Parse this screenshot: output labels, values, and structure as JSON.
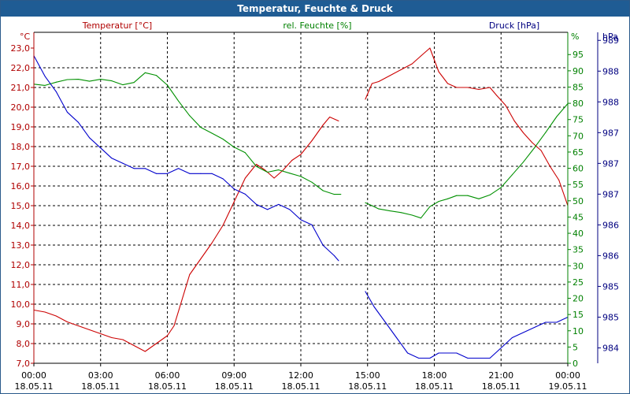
{
  "window": {
    "title": "Temperatur, Feuchte & Druck"
  },
  "chart_data": {
    "type": "line",
    "title": "Temperatur, Feuchte & Druck",
    "x_ticks": [
      {
        "time": "00:00",
        "date": "18.05.11"
      },
      {
        "time": "03:00",
        "date": "18.05.11"
      },
      {
        "time": "06:00",
        "date": "18.05.11"
      },
      {
        "time": "09:00",
        "date": "18.05.11"
      },
      {
        "time": "12:00",
        "date": "18.05.11"
      },
      {
        "time": "15:00",
        "date": "18.05.11"
      },
      {
        "time": "18:00",
        "date": "18.05.11"
      },
      {
        "time": "21:00",
        "date": "18.05.11"
      },
      {
        "time": "00:00",
        "date": "19.05.11"
      }
    ],
    "x_range_hours": [
      0,
      24
    ],
    "axes": {
      "temperature": {
        "label": "Temperatur [°C]",
        "unit": "°C",
        "color": "#b00000",
        "range": [
          7.0,
          23.0
        ],
        "ticks": [
          "7,0",
          "8,0",
          "9,0",
          "10,0",
          "11,0",
          "12,0",
          "13,0",
          "14,0",
          "15,0",
          "16,0",
          "17,0",
          "18,0",
          "19,0",
          "20,0",
          "21,0",
          "22,0",
          "23,0"
        ]
      },
      "humidity": {
        "label": "rel. Feuchte [%]",
        "unit": "%",
        "color": "#008000",
        "range": [
          0,
          97
        ],
        "ticks": [
          "0",
          "5",
          "10",
          "15",
          "20",
          "25",
          "30",
          "35",
          "40",
          "45",
          "50",
          "55",
          "60",
          "65",
          "70",
          "75",
          "80",
          "85",
          "90",
          "95"
        ]
      },
      "pressure": {
        "label": "Druck [hPa]",
        "unit": "hPa",
        "color": "#000080",
        "range": [
          983.7,
          989.85
        ],
        "ticks": [
          "984",
          "985",
          "985",
          "986",
          "986",
          "987",
          "987",
          "987",
          "988",
          "988",
          "989"
        ],
        "tick_values": [
          984,
          984.6,
          985.2,
          985.8,
          986.4,
          987.0,
          987.6,
          988.2,
          988.8,
          989.4,
          990.0
        ]
      }
    },
    "grid": true,
    "series": [
      {
        "name": "Temperatur [°C]",
        "axis": "temperature",
        "color": "#cc0000",
        "segments": [
          [
            [
              0,
              9.7
            ],
            [
              0.5,
              9.6
            ],
            [
              1,
              9.4
            ],
            [
              1.5,
              9.1
            ],
            [
              2,
              8.9
            ],
            [
              2.5,
              8.7
            ],
            [
              3,
              8.5
            ],
            [
              3.5,
              8.3
            ],
            [
              4,
              8.2
            ],
            [
              4.5,
              7.9
            ],
            [
              5,
              7.6
            ],
            [
              5.5,
              8.0
            ],
            [
              6,
              8.4
            ],
            [
              6.3,
              8.9
            ],
            [
              6.6,
              10.0
            ],
            [
              7,
              11.5
            ],
            [
              7.5,
              12.3
            ],
            [
              8,
              13.1
            ],
            [
              8.5,
              14.0
            ],
            [
              9,
              15.2
            ],
            [
              9.5,
              16.4
            ],
            [
              10,
              17.1
            ],
            [
              10.4,
              16.8
            ],
            [
              10.8,
              16.4
            ],
            [
              11.2,
              16.8
            ],
            [
              11.6,
              17.3
            ],
            [
              12,
              17.6
            ],
            [
              12.5,
              18.3
            ],
            [
              13,
              19.1
            ],
            [
              13.3,
              19.5
            ],
            [
              13.7,
              19.3
            ]
          ],
          [
            [
              14.9,
              20.4
            ],
            [
              15.2,
              21.2
            ],
            [
              15.5,
              21.3
            ],
            [
              16,
              21.6
            ],
            [
              16.5,
              21.9
            ],
            [
              17,
              22.2
            ],
            [
              17.4,
              22.6
            ],
            [
              17.8,
              23.0
            ],
            [
              18.2,
              21.8
            ],
            [
              18.6,
              21.2
            ],
            [
              19,
              21.0
            ],
            [
              19.5,
              21.0
            ],
            [
              20,
              20.9
            ],
            [
              20.5,
              21.0
            ],
            [
              20.8,
              20.6
            ],
            [
              21.2,
              20.1
            ],
            [
              21.6,
              19.3
            ],
            [
              22,
              18.7
            ],
            [
              22.4,
              18.2
            ],
            [
              22.8,
              17.8
            ],
            [
              23.2,
              17.0
            ],
            [
              23.6,
              16.3
            ],
            [
              24,
              15.0
            ]
          ]
        ]
      },
      {
        "name": "rel. Feuchte [%]",
        "axis": "humidity",
        "color": "#009000",
        "segments": [
          [
            [
              0,
              85.9
            ],
            [
              0.5,
              85.5
            ],
            [
              1,
              86.5
            ],
            [
              1.5,
              87.3
            ],
            [
              2,
              87.4
            ],
            [
              2.5,
              86.8
            ],
            [
              3,
              87.4
            ],
            [
              3.5,
              86.9
            ],
            [
              4,
              85.7
            ],
            [
              4.5,
              86.4
            ],
            [
              5,
              89.4
            ],
            [
              5.5,
              88.6
            ],
            [
              6,
              85.6
            ],
            [
              6.5,
              80.7
            ],
            [
              7,
              76.2
            ],
            [
              7.5,
              72.6
            ],
            [
              8,
              70.8
            ],
            [
              8.5,
              69.0
            ],
            [
              9,
              66.5
            ],
            [
              9.5,
              64.8
            ],
            [
              10,
              60.6
            ],
            [
              10.5,
              58.8
            ],
            [
              11,
              59.5
            ],
            [
              11.5,
              58.5
            ],
            [
              12,
              57.5
            ],
            [
              12.5,
              55.7
            ],
            [
              13,
              53.1
            ],
            [
              13.5,
              52.0
            ],
            [
              13.8,
              52.0
            ]
          ],
          [
            [
              14.9,
              49.4
            ],
            [
              15.2,
              48.5
            ],
            [
              15.5,
              47.5
            ],
            [
              16,
              46.9
            ],
            [
              16.5,
              46.4
            ],
            [
              17,
              45.6
            ],
            [
              17.4,
              44.7
            ],
            [
              17.8,
              48.2
            ],
            [
              18.2,
              49.8
            ],
            [
              18.6,
              50.6
            ],
            [
              19,
              51.6
            ],
            [
              19.5,
              51.6
            ],
            [
              20,
              50.6
            ],
            [
              20.5,
              51.8
            ],
            [
              21,
              54.1
            ],
            [
              21.5,
              58.0
            ],
            [
              22,
              61.9
            ],
            [
              22.5,
              66.3
            ],
            [
              23,
              71.0
            ],
            [
              23.5,
              75.9
            ],
            [
              24,
              79.9
            ]
          ]
        ]
      },
      {
        "name": "Druck [hPa]",
        "axis": "pressure",
        "color": "#0000cc",
        "segments": [
          [
            [
              0,
              989.7
            ],
            [
              0.5,
              989.3
            ],
            [
              1,
              989.0
            ],
            [
              1.5,
              988.6
            ],
            [
              2,
              988.4
            ],
            [
              2.5,
              988.1
            ],
            [
              3,
              987.9
            ],
            [
              3.5,
              987.7
            ],
            [
              4,
              987.6
            ],
            [
              4.5,
              987.5
            ],
            [
              5,
              987.5
            ],
            [
              5.5,
              987.4
            ],
            [
              6,
              987.4
            ],
            [
              6.5,
              987.5
            ],
            [
              7,
              987.4
            ],
            [
              7.5,
              987.4
            ],
            [
              8,
              987.4
            ],
            [
              8.5,
              987.3
            ],
            [
              9,
              987.1
            ],
            [
              9.5,
              987.0
            ],
            [
              10,
              986.8
            ],
            [
              10.5,
              986.7
            ],
            [
              11,
              986.8
            ],
            [
              11.5,
              986.7
            ],
            [
              12,
              986.5
            ],
            [
              12.5,
              986.4
            ],
            [
              13,
              986.0
            ],
            [
              13.5,
              985.8
            ],
            [
              13.7,
              985.7
            ]
          ],
          [
            [
              14.9,
              985.1
            ],
            [
              15.3,
              984.8
            ],
            [
              15.8,
              984.5
            ],
            [
              16.3,
              984.2
            ],
            [
              16.8,
              983.9
            ],
            [
              17.3,
              983.8
            ],
            [
              17.8,
              983.8
            ],
            [
              18.2,
              983.9
            ],
            [
              18.6,
              983.9
            ],
            [
              19,
              983.9
            ],
            [
              19.5,
              983.8
            ],
            [
              20,
              983.8
            ],
            [
              20.5,
              983.8
            ],
            [
              21,
              984.0
            ],
            [
              21.5,
              984.2
            ],
            [
              22,
              984.3
            ],
            [
              22.5,
              984.4
            ],
            [
              23,
              984.5
            ],
            [
              23.5,
              984.5
            ],
            [
              24,
              984.6
            ]
          ]
        ]
      }
    ]
  }
}
